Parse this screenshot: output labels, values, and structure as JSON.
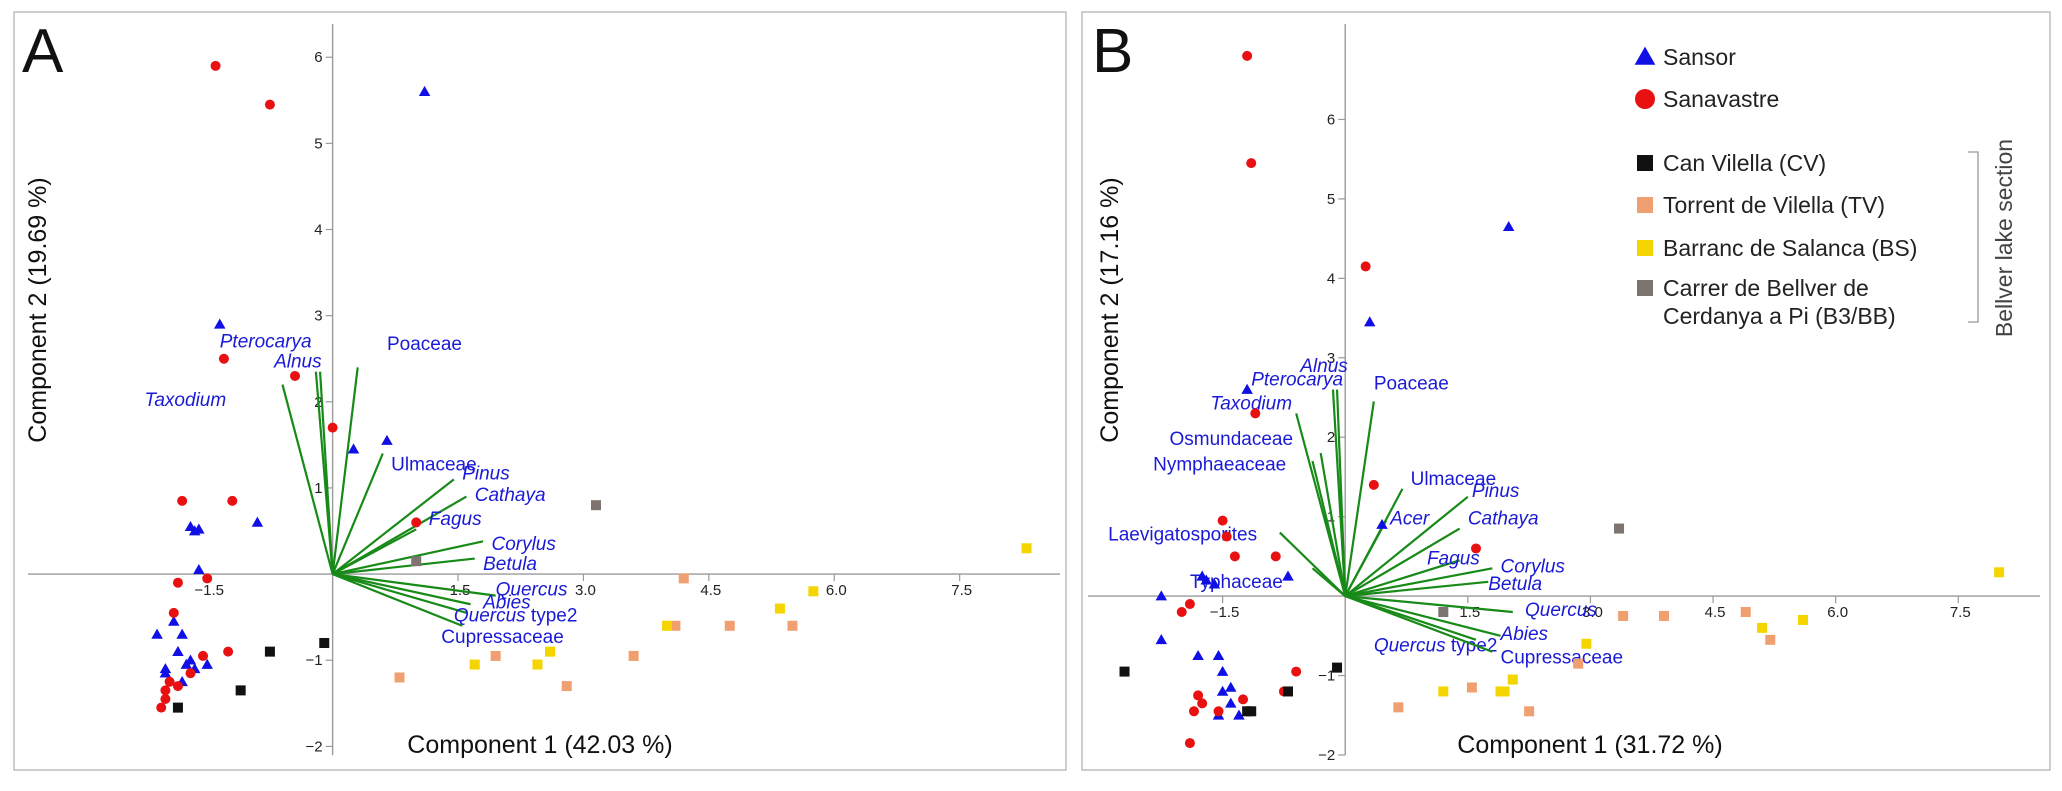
{
  "colors": {
    "Sansor": "#1010e6",
    "Sanavastre": "#e81010",
    "CV": "#111111",
    "TV": "#f0a070",
    "BS": "#f5d500",
    "B3": "#7d7470",
    "loading": "#178a17",
    "taxon": "#1a1ad6"
  },
  "legend": {
    "items": [
      {
        "key": "Sansor",
        "label": "Sansor",
        "marker": "triangle"
      },
      {
        "key": "Sanavastre",
        "label": "Sanavastre",
        "marker": "circle"
      },
      {
        "key": "CV",
        "label": "Can Vilella (CV)",
        "marker": "square"
      },
      {
        "key": "TV",
        "label": "Torrent de Vilella (TV)",
        "marker": "square"
      },
      {
        "key": "BS",
        "label": "Barranc de Salanca (BS)",
        "marker": "square"
      },
      {
        "key": "B3",
        "label": "Carrer de Bellver de",
        "label2": "Cerdanya a Pi (B3/BB)",
        "marker": "square"
      }
    ],
    "side_label": "Bellver lake section"
  },
  "chart_data": [
    {
      "panel": "A",
      "type": "scatter",
      "xlabel": "Component 1 (42.03 %)",
      "ylabel": "Component 2  (19.69 %)",
      "xlim": [
        -3.5,
        8.7
      ],
      "ylim": [
        -2.1,
        6.2
      ],
      "xticks": [
        -1.5,
        1.5,
        3.0,
        4.5,
        6.0,
        7.5
      ],
      "xtick_labels": [
        "−1.5",
        "1.5",
        "3.0",
        "4.5",
        "6.0",
        "7.5"
      ],
      "yticks": [
        -2,
        -1,
        1,
        2,
        3,
        4,
        5,
        6
      ],
      "ytick_labels": [
        "−2",
        "−1",
        "1",
        "2",
        "3",
        "4",
        "5",
        "6"
      ],
      "series": [
        {
          "key": "Sansor",
          "points": [
            [
              1.1,
              5.6
            ],
            [
              -1.35,
              2.9
            ],
            [
              -0.9,
              0.6
            ],
            [
              -1.7,
              0.55
            ],
            [
              -1.65,
              0.5
            ],
            [
              -1.6,
              0.52
            ],
            [
              -1.6,
              0.05
            ],
            [
              -1.9,
              -0.55
            ],
            [
              -1.8,
              -0.7
            ],
            [
              -2.1,
              -0.7
            ],
            [
              -1.85,
              -0.9
            ],
            [
              -1.5,
              -1.05
            ],
            [
              -1.7,
              -1.0
            ],
            [
              -1.65,
              -1.1
            ],
            [
              -2.0,
              -1.15
            ],
            [
              -1.8,
              -1.25
            ],
            [
              0.25,
              1.45
            ],
            [
              0.65,
              1.55
            ],
            [
              -2.0,
              -1.1
            ],
            [
              -1.75,
              -1.05
            ]
          ]
        },
        {
          "key": "Sanavastre",
          "points": [
            [
              -1.4,
              5.9
            ],
            [
              -0.75,
              5.45
            ],
            [
              -1.3,
              2.5
            ],
            [
              -0.45,
              2.3
            ],
            [
              0,
              1.7
            ],
            [
              -1.8,
              0.85
            ],
            [
              -1.2,
              0.85
            ],
            [
              1.0,
              0.6
            ],
            [
              -1.5,
              -0.05
            ],
            [
              -1.85,
              -0.1
            ],
            [
              -1.9,
              -0.45
            ],
            [
              -1.55,
              -0.95
            ],
            [
              -1.25,
              -0.9
            ],
            [
              -1.7,
              -1.15
            ],
            [
              -1.95,
              -1.25
            ],
            [
              -2.0,
              -1.35
            ],
            [
              -2.0,
              -1.45
            ],
            [
              -2.05,
              -1.55
            ],
            [
              -1.85,
              -1.3
            ]
          ]
        },
        {
          "key": "CV",
          "points": [
            [
              -0.75,
              -0.9
            ],
            [
              -0.1,
              -0.8
            ],
            [
              -1.1,
              -1.35
            ],
            [
              -1.85,
              -1.55
            ]
          ]
        },
        {
          "key": "TV",
          "points": [
            [
              0.8,
              -1.2
            ],
            [
              1.95,
              -0.95
            ],
            [
              2.8,
              -1.3
            ],
            [
              3.6,
              -0.95
            ],
            [
              4.2,
              -0.05
            ],
            [
              4.1,
              -0.6
            ],
            [
              4.75,
              -0.6
            ],
            [
              5.5,
              -0.6
            ]
          ]
        },
        {
          "key": "BS",
          "points": [
            [
              1.7,
              -1.05
            ],
            [
              2.45,
              -1.05
            ],
            [
              2.6,
              -0.9
            ],
            [
              4.0,
              -0.6
            ],
            [
              5.35,
              -0.4
            ],
            [
              5.75,
              -0.2
            ],
            [
              8.3,
              0.3
            ]
          ]
        },
        {
          "key": "B3",
          "points": [
            [
              1.0,
              0.15
            ],
            [
              3.15,
              0.8
            ]
          ]
        }
      ],
      "loadings": [
        {
          "name": "Pterocarya",
          "italic": true,
          "x": -0.2,
          "y": 2.35,
          "dx": -1.15,
          "dy": 0.28
        },
        {
          "name": "Alnus",
          "italic": true,
          "x": -0.15,
          "y": 2.35,
          "dx": -0.55,
          "dy": 0.05
        },
        {
          "name": "Taxodium",
          "italic": true,
          "x": -0.6,
          "y": 2.2,
          "dx": -1.65,
          "dy": -0.25
        },
        {
          "name": "Poaceae",
          "italic": false,
          "x": 0.3,
          "y": 2.4,
          "dx": 0.35,
          "dy": 0.2
        },
        {
          "name": "Ulmaceae",
          "italic": false,
          "x": 0.6,
          "y": 1.4,
          "dx": 0.1,
          "dy": -0.2
        },
        {
          "name": "Pinus",
          "italic": true,
          "x": 1.45,
          "y": 1.1,
          "dx": 0.1,
          "dy": 0.0
        },
        {
          "name": "Cathaya",
          "italic": true,
          "x": 1.6,
          "y": 0.9,
          "dx": 0.1,
          "dy": -0.05
        },
        {
          "name": "Fagus",
          "italic": true,
          "x": 1.0,
          "y": 0.52,
          "dx": 0.15,
          "dy": 0.05
        },
        {
          "name": "Corylus",
          "italic": true,
          "x": 1.8,
          "y": 0.38,
          "dx": 0.1,
          "dy": -0.1
        },
        {
          "name": "Betula",
          "italic": true,
          "x": 1.7,
          "y": 0.18,
          "dx": 0.1,
          "dy": -0.13
        },
        {
          "name": "Quercus",
          "italic": true,
          "x": 1.95,
          "y": -0.25,
          "dx": 0.0,
          "dy": 0.0
        },
        {
          "name": "Abies",
          "italic": true,
          "x": 1.65,
          "y": -0.35,
          "dx": 0.15,
          "dy": -0.05
        },
        {
          "name": "Quercus",
          "suffix": " type2",
          "italic": true,
          "x": 1.6,
          "y": -0.45,
          "dx": -0.15,
          "dy": -0.1
        },
        {
          "name": "Cupressaceae",
          "italic": false,
          "x": 1.55,
          "y": -0.6,
          "dx": -0.25,
          "dy": -0.2
        }
      ]
    },
    {
      "panel": "B",
      "type": "scatter",
      "xlabel": "Component 1 (31.72 %)",
      "ylabel": "Component 2  (17.16 %)",
      "xlim": [
        -3.0,
        8.5
      ],
      "ylim": [
        -2.0,
        7.0
      ],
      "xticks": [
        -1.5,
        1.5,
        3.0,
        4.5,
        6.0,
        7.5
      ],
      "xtick_labels": [
        "−1.5",
        "1.5",
        "3.0",
        "4.5",
        "6.0",
        "7.5"
      ],
      "yticks": [
        -2,
        -1,
        1,
        2,
        3,
        4,
        5,
        6
      ],
      "ytick_labels": [
        "−2",
        "−1",
        "1",
        "2",
        "3",
        "4",
        "5",
        "6"
      ],
      "series": [
        {
          "key": "Sansor",
          "points": [
            [
              2.0,
              4.65
            ],
            [
              0.3,
              3.45
            ],
            [
              -1.2,
              2.6
            ],
            [
              -1.6,
              0.15
            ],
            [
              -1.75,
              0.25
            ],
            [
              -1.7,
              0.2
            ],
            [
              -2.25,
              0.0
            ],
            [
              -2.25,
              -0.55
            ],
            [
              -1.8,
              -0.75
            ],
            [
              -1.55,
              -0.75
            ],
            [
              -1.5,
              -0.95
            ],
            [
              -1.4,
              -1.15
            ],
            [
              -1.5,
              -1.2
            ],
            [
              -1.4,
              -1.35
            ],
            [
              -1.3,
              -1.5
            ],
            [
              -1.55,
              -1.5
            ],
            [
              -0.7,
              0.25
            ],
            [
              0.45,
              0.9
            ]
          ]
        },
        {
          "key": "Sanavastre",
          "points": [
            [
              -1.2,
              6.8
            ],
            [
              -1.15,
              5.45
            ],
            [
              0.25,
              4.15
            ],
            [
              -1.1,
              2.3
            ],
            [
              0.35,
              1.4
            ],
            [
              -1.5,
              0.95
            ],
            [
              -1.45,
              0.75
            ],
            [
              -0.85,
              0.5
            ],
            [
              -1.35,
              0.5
            ],
            [
              1.6,
              0.6
            ],
            [
              -1.9,
              -0.1
            ],
            [
              -2.0,
              -0.2
            ],
            [
              -0.6,
              -0.95
            ],
            [
              -1.8,
              -1.25
            ],
            [
              -0.75,
              -1.2
            ],
            [
              -1.25,
              -1.3
            ],
            [
              -1.85,
              -1.45
            ],
            [
              -1.75,
              -1.35
            ],
            [
              -1.9,
              -1.85
            ],
            [
              -1.55,
              -1.45
            ]
          ]
        },
        {
          "key": "CV",
          "points": [
            [
              -2.7,
              -0.95
            ],
            [
              -0.1,
              -0.9
            ],
            [
              -0.7,
              -1.2
            ],
            [
              -1.15,
              -1.45
            ],
            [
              -1.2,
              -1.45
            ]
          ]
        },
        {
          "key": "TV",
          "points": [
            [
              0.65,
              -1.4
            ],
            [
              1.55,
              -1.15
            ],
            [
              3.4,
              -0.25
            ],
            [
              3.9,
              -0.25
            ],
            [
              4.9,
              -0.2
            ],
            [
              5.2,
              -0.55
            ],
            [
              2.25,
              -1.45
            ],
            [
              2.85,
              -0.85
            ]
          ]
        },
        {
          "key": "BS",
          "points": [
            [
              1.2,
              -1.2
            ],
            [
              1.95,
              -1.2
            ],
            [
              2.05,
              -1.05
            ],
            [
              2.95,
              -0.6
            ],
            [
              5.1,
              -0.4
            ],
            [
              5.6,
              -0.3
            ],
            [
              8.0,
              0.3
            ],
            [
              1.9,
              -1.2
            ]
          ]
        },
        {
          "key": "B3",
          "points": [
            [
              1.2,
              -0.2
            ],
            [
              3.35,
              0.85
            ]
          ]
        }
      ],
      "loadings": [
        {
          "name": "Alnus",
          "italic": true,
          "x": -0.15,
          "y": 2.6,
          "dx": -0.4,
          "dy": 0.22
        },
        {
          "name": "Pterocarya",
          "italic": true,
          "x": -0.1,
          "y": 2.6,
          "dx": -1.05,
          "dy": 0.05
        },
        {
          "name": "Taxodium",
          "italic": true,
          "x": -0.6,
          "y": 2.3,
          "dx": -1.05,
          "dy": 0.05
        },
        {
          "name": "Poaceae",
          "italic": false,
          "x": 0.35,
          "y": 2.45,
          "dx": 0.0,
          "dy": 0.15
        },
        {
          "name": "Osmundaceae",
          "italic": false,
          "x": -0.3,
          "y": 1.8,
          "dx": -1.85,
          "dy": 0.1
        },
        {
          "name": "Nymphaeaceae",
          "italic": false,
          "x": -0.4,
          "y": 1.7,
          "dx": -1.95,
          "dy": -0.12
        },
        {
          "name": "Ulmaceae",
          "italic": false,
          "x": 0.7,
          "y": 1.35,
          "dx": 0.1,
          "dy": 0.05
        },
        {
          "name": "Pinus",
          "italic": true,
          "x": 1.5,
          "y": 1.25,
          "dx": 0.05,
          "dy": 0.0
        },
        {
          "name": "Acer",
          "italic": true,
          "x": 0.5,
          "y": 0.95,
          "dx": 0.05,
          "dy": -0.05
        },
        {
          "name": "Cathaya",
          "italic": true,
          "x": 1.4,
          "y": 0.85,
          "dx": 0.1,
          "dy": 0.05
        },
        {
          "name": "Laevigatosporites",
          "italic": false,
          "x": -0.8,
          "y": 0.8,
          "dx": -2.1,
          "dy": -0.1
        },
        {
          "name": "Typhaceae",
          "italic": false,
          "x": -0.4,
          "y": 0.35,
          "dx": -1.5,
          "dy": -0.25
        },
        {
          "name": "Fagus",
          "italic": true,
          "x": 1.4,
          "y": 0.45,
          "dx": -0.4,
          "dy": -0.05
        },
        {
          "name": "Corylus",
          "italic": true,
          "x": 1.8,
          "y": 0.35,
          "dx": 0.1,
          "dy": -0.05
        },
        {
          "name": "Betula",
          "italic": true,
          "x": 1.75,
          "y": 0.18,
          "dx": 0.0,
          "dy": -0.1
        },
        {
          "name": "Quercus",
          "italic": true,
          "x": 2.05,
          "y": -0.2,
          "dx": 0.15,
          "dy": -0.05
        },
        {
          "name": "Abies",
          "italic": true,
          "x": 1.9,
          "y": -0.5,
          "dx": 0.0,
          "dy": -0.05
        },
        {
          "name": "Quercus",
          "suffix": " type2",
          "italic": true,
          "x": 1.6,
          "y": -0.55,
          "dx": -1.25,
          "dy": -0.15
        },
        {
          "name": "Cupressaceae",
          "italic": false,
          "x": 1.8,
          "y": -0.7,
          "dx": 0.1,
          "dy": -0.15
        }
      ]
    }
  ]
}
